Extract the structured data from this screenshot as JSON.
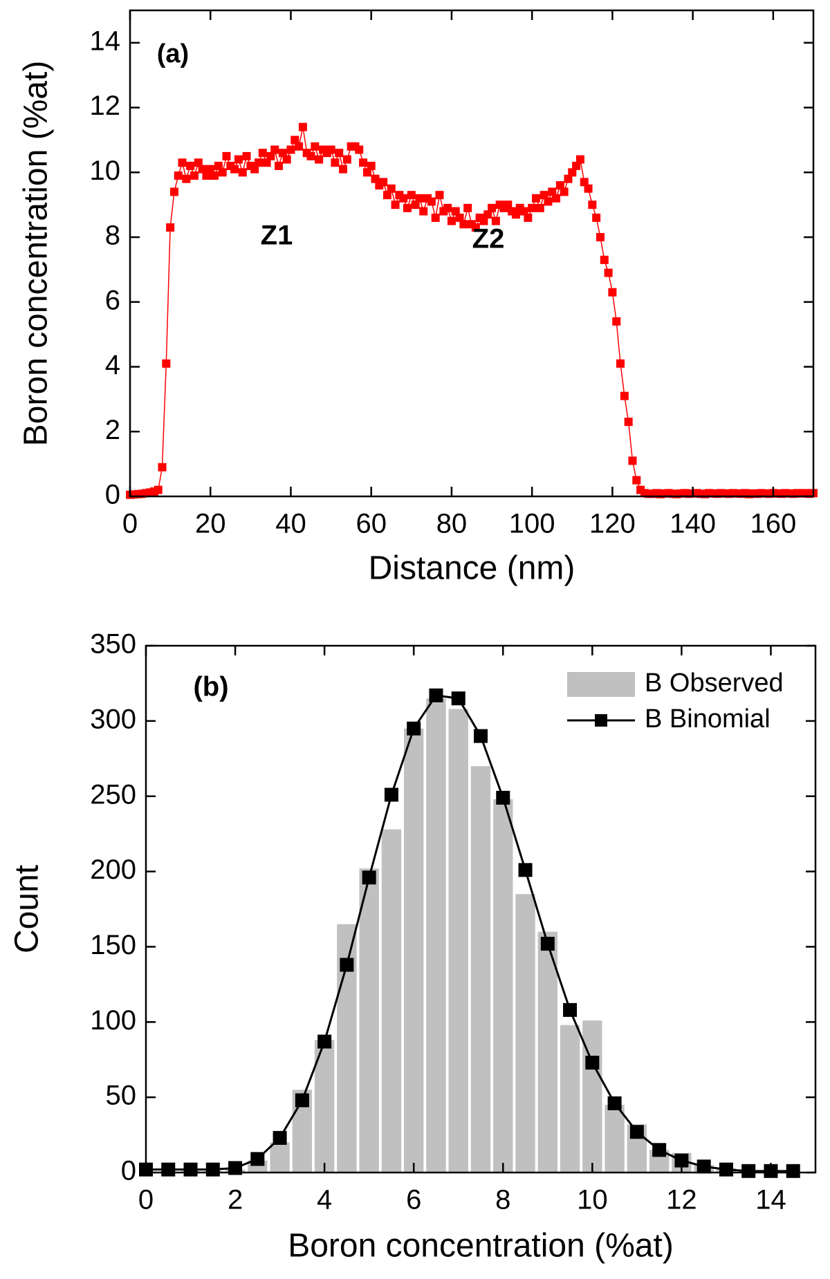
{
  "chart_data": [
    {
      "type": "line",
      "annotations": [
        "(a)",
        "Z1",
        "Z2"
      ],
      "xlabel": "Distance (nm)",
      "ylabel": "Boron concentration (%at)",
      "xlim": [
        0,
        170
      ],
      "ylim": [
        0,
        15
      ],
      "xticks": [
        0,
        20,
        40,
        60,
        80,
        100,
        120,
        140,
        160
      ],
      "yticks": [
        0,
        2,
        4,
        6,
        8,
        10,
        12,
        14
      ],
      "x": [
        0,
        1,
        2,
        3,
        4,
        5,
        6,
        7,
        8,
        9,
        10,
        11,
        12,
        13,
        14,
        15,
        16,
        17,
        18,
        19,
        20,
        21,
        22,
        23,
        24,
        25,
        26,
        27,
        28,
        29,
        30,
        31,
        32,
        33,
        34,
        35,
        36,
        37,
        38,
        39,
        40,
        41,
        42,
        43,
        44,
        45,
        46,
        47,
        48,
        49,
        50,
        51,
        52,
        53,
        54,
        55,
        56,
        57,
        58,
        59,
        60,
        61,
        62,
        63,
        64,
        65,
        66,
        67,
        68,
        69,
        70,
        71,
        72,
        73,
        74,
        75,
        76,
        77,
        78,
        79,
        80,
        81,
        82,
        83,
        84,
        85,
        86,
        87,
        88,
        89,
        90,
        91,
        92,
        93,
        94,
        95,
        96,
        97,
        98,
        99,
        100,
        101,
        102,
        103,
        104,
        105,
        106,
        107,
        108,
        109,
        110,
        111,
        112,
        113,
        114,
        115,
        116,
        117,
        118,
        119,
        120,
        121,
        122,
        123,
        124,
        125,
        126,
        127,
        128,
        129,
        130,
        131,
        132,
        133,
        134,
        135,
        136,
        137,
        138,
        139,
        140,
        141,
        142,
        143,
        144,
        145,
        146,
        147,
        148,
        149,
        150,
        151,
        152,
        153,
        154,
        155,
        156,
        157,
        158,
        159,
        160,
        161,
        162,
        163,
        164,
        165,
        166,
        167,
        168,
        169,
        170
      ],
      "series": [
        {
          "color": "#ff0000",
          "values": [
            0.05,
            0.06,
            0.07,
            0.08,
            0.1,
            0.12,
            0.15,
            0.2,
            0.9,
            4.1,
            8.3,
            9.4,
            9.9,
            10.3,
            9.8,
            10.2,
            9.9,
            10.3,
            10.1,
            9.9,
            10.1,
            9.9,
            10.2,
            10.0,
            10.5,
            10.2,
            10.1,
            10.4,
            10.0,
            10.5,
            10.2,
            10.1,
            10.3,
            10.6,
            10.3,
            10.5,
            10.7,
            10.2,
            10.6,
            10.4,
            10.7,
            11.0,
            10.8,
            11.4,
            10.6,
            10.5,
            10.8,
            10.4,
            10.7,
            10.6,
            10.7,
            10.3,
            10.6,
            10.1,
            10.4,
            10.8,
            10.8,
            10.7,
            10.3,
            10.0,
            10.2,
            9.8,
            9.6,
            9.7,
            9.3,
            9.5,
            9.0,
            9.3,
            9.2,
            8.9,
            9.3,
            9.0,
            9.2,
            8.8,
            9.2,
            9.1,
            8.6,
            9.3,
            8.8,
            8.9,
            8.5,
            8.8,
            8.6,
            8.4,
            8.9,
            8.4,
            8.3,
            8.6,
            8.5,
            8.7,
            8.9,
            8.5,
            9.0,
            8.9,
            9.0,
            8.8,
            8.7,
            8.9,
            8.8,
            8.6,
            8.9,
            9.2,
            8.9,
            9.3,
            9.1,
            9.4,
            9.2,
            9.6,
            9.4,
            9.8,
            10.0,
            10.2,
            10.4,
            9.7,
            9.5,
            9.0,
            8.6,
            8.0,
            7.3,
            6.9,
            6.3,
            5.4,
            4.1,
            3.1,
            2.3,
            1.1,
            0.5,
            0.2,
            0.1,
            0.08,
            0.08,
            0.1,
            0.07,
            0.09,
            0.1,
            0.08,
            0.07,
            0.09,
            0.1,
            0.08,
            0.09,
            0.1,
            0.08,
            0.07,
            0.1,
            0.09,
            0.08,
            0.1,
            0.09,
            0.08,
            0.1,
            0.09,
            0.08,
            0.1,
            0.07,
            0.09,
            0.08,
            0.1,
            0.09,
            0.08,
            0.1,
            0.09,
            0.08,
            0.1,
            0.09,
            0.08,
            0.1,
            0.09,
            0.1,
            0.08,
            0.1
          ]
        }
      ]
    },
    {
      "type": "bar",
      "annotations": [
        "(b)"
      ],
      "xlabel": "Boron concentration (%at)",
      "ylabel": "Count",
      "xlim": [
        0,
        15
      ],
      "ylim": [
        0,
        350
      ],
      "xticks": [
        0,
        2,
        4,
        6,
        8,
        10,
        12,
        14
      ],
      "yticks": [
        0,
        50,
        100,
        150,
        200,
        250,
        300,
        350
      ],
      "legend": "upper right",
      "x": [
        0,
        0.5,
        1,
        1.5,
        2,
        2.5,
        3,
        3.5,
        4,
        4.5,
        5,
        5.5,
        6,
        6.5,
        7,
        7.5,
        8,
        8.5,
        9,
        9.5,
        10,
        10.5,
        11,
        11.5,
        12,
        12.5,
        13,
        13.5,
        14,
        14.5
      ],
      "series": [
        {
          "name": "B Observed",
          "type": "bar",
          "color": "#c0c0c0",
          "values": [
            0,
            0,
            1,
            1,
            2,
            8,
            20,
            55,
            88,
            165,
            202,
            228,
            295,
            315,
            308,
            270,
            248,
            185,
            160,
            98,
            101,
            45,
            32,
            15,
            13,
            5,
            3,
            1,
            1,
            0.5
          ]
        },
        {
          "name": "B Binomial",
          "type": "line",
          "color": "#000000",
          "values": [
            2,
            2,
            2,
            2,
            3,
            9,
            23,
            48,
            87,
            138,
            196,
            251,
            295,
            317,
            315,
            290,
            249,
            201,
            152,
            108,
            73,
            46,
            27,
            15,
            8,
            4,
            2,
            1,
            1,
            1
          ]
        }
      ]
    }
  ]
}
